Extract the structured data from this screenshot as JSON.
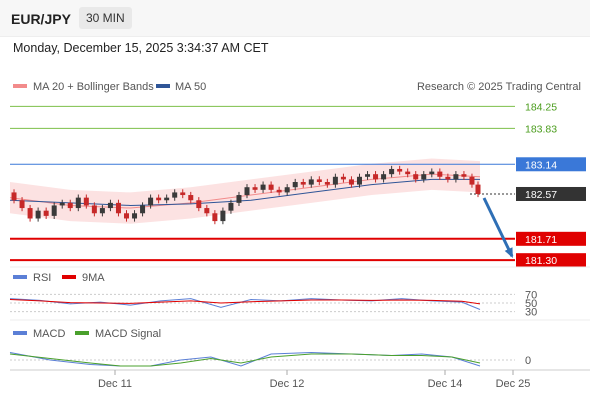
{
  "header": {
    "symbol": "EUR/JPY",
    "timeframe": "30 MIN",
    "datetime": "Monday, December 15, 2025 3:34:37 AM CET"
  },
  "legend": {
    "ma20_bb": "MA 20 + Bollinger Bands",
    "ma50": "MA 50",
    "credit": "Research © 2025 Trading Central",
    "rsi": "RSI",
    "rsi_ma": "9MA",
    "macd": "MACD",
    "macd_signal": "MACD Signal"
  },
  "colors": {
    "ma20_bb": "#f28b8b",
    "ma50": "#2f5597",
    "resistance": "#7dbf4a",
    "pivot": "#3a78d8",
    "support": "#e00000",
    "current": "#333333",
    "arrow": "#2f6fb5",
    "rsi": "#5b7fd6",
    "rsi_ma": "#e00000",
    "macd": "#5b7fd6",
    "macd_signal": "#4aa02c",
    "candle_up": "#3a3a3a",
    "candle_down": "#c62828"
  },
  "chart_data": [
    {
      "type": "candlestick",
      "title": "",
      "ylim": [
        181.15,
        184.45
      ],
      "x_ticks": [
        "Dec 11",
        "Dec 12",
        "Dec 14",
        "Dec 25"
      ],
      "levels": [
        {
          "name": "resistance-2",
          "value": "184.25",
          "kind": "resistance"
        },
        {
          "name": "resistance-1",
          "value": "183.83",
          "kind": "resistance"
        },
        {
          "name": "pivot",
          "value": "183.14",
          "kind": "pivot"
        },
        {
          "name": "current",
          "value": "182.57",
          "kind": "current"
        },
        {
          "name": "support-1",
          "value": "181.71",
          "kind": "support"
        },
        {
          "name": "support-2",
          "value": "181.30",
          "kind": "support"
        }
      ],
      "forecast": {
        "from": 182.57,
        "to": 181.3
      },
      "close_path": [
        [
          0,
          182.6
        ],
        [
          8,
          182.45
        ],
        [
          16,
          182.3
        ],
        [
          24,
          182.1
        ],
        [
          32,
          182.25
        ],
        [
          40,
          182.15
        ],
        [
          48,
          182.35
        ],
        [
          56,
          182.4
        ],
        [
          64,
          182.3
        ],
        [
          72,
          182.5
        ],
        [
          80,
          182.35
        ],
        [
          88,
          182.2
        ],
        [
          96,
          182.3
        ],
        [
          104,
          182.4
        ],
        [
          112,
          182.2
        ],
        [
          120,
          182.1
        ],
        [
          128,
          182.2
        ],
        [
          136,
          182.35
        ],
        [
          144,
          182.5
        ],
        [
          152,
          182.45
        ],
        [
          160,
          182.5
        ],
        [
          168,
          182.6
        ],
        [
          176,
          182.55
        ],
        [
          184,
          182.45
        ],
        [
          192,
          182.3
        ],
        [
          200,
          182.2
        ],
        [
          208,
          182.05
        ],
        [
          216,
          182.25
        ],
        [
          224,
          182.4
        ],
        [
          232,
          182.55
        ],
        [
          240,
          182.7
        ],
        [
          248,
          182.65
        ],
        [
          256,
          182.75
        ],
        [
          264,
          182.65
        ],
        [
          272,
          182.6
        ],
        [
          280,
          182.7
        ],
        [
          288,
          182.8
        ],
        [
          296,
          182.75
        ],
        [
          304,
          182.85
        ],
        [
          312,
          182.8
        ],
        [
          320,
          182.75
        ],
        [
          328,
          182.9
        ],
        [
          336,
          182.85
        ],
        [
          344,
          182.75
        ],
        [
          352,
          182.9
        ],
        [
          360,
          182.95
        ],
        [
          368,
          182.85
        ],
        [
          376,
          182.95
        ],
        [
          384,
          183.05
        ],
        [
          392,
          183.0
        ],
        [
          400,
          182.95
        ],
        [
          408,
          182.85
        ],
        [
          416,
          182.95
        ],
        [
          424,
          183.0
        ],
        [
          432,
          182.9
        ],
        [
          440,
          182.85
        ],
        [
          448,
          182.95
        ],
        [
          456,
          182.9
        ],
        [
          464,
          182.75
        ],
        [
          468,
          182.57
        ]
      ],
      "ma20_path": [
        [
          0,
          182.5
        ],
        [
          60,
          182.35
        ],
        [
          120,
          182.3
        ],
        [
          180,
          182.4
        ],
        [
          240,
          182.55
        ],
        [
          300,
          182.7
        ],
        [
          360,
          182.85
        ],
        [
          420,
          182.95
        ],
        [
          468,
          182.9
        ]
      ],
      "ma50_path": [
        [
          0,
          182.45
        ],
        [
          60,
          182.4
        ],
        [
          120,
          182.35
        ],
        [
          180,
          182.38
        ],
        [
          240,
          182.45
        ],
        [
          300,
          182.6
        ],
        [
          360,
          182.75
        ],
        [
          420,
          182.85
        ],
        [
          468,
          182.85
        ]
      ],
      "bb_width": 0.3
    },
    {
      "type": "line",
      "title": "",
      "ylim": [
        20,
        80
      ],
      "y_ticks": [
        "70",
        "50",
        "30"
      ],
      "series": [
        {
          "name": "RSI",
          "values": [
            [
              0,
              60
            ],
            [
              30,
              56
            ],
            [
              60,
              48
            ],
            [
              90,
              52
            ],
            [
              120,
              45
            ],
            [
              150,
              55
            ],
            [
              180,
              60
            ],
            [
              210,
              40
            ],
            [
              240,
              58
            ],
            [
              270,
              55
            ],
            [
              300,
              60
            ],
            [
              330,
              57
            ],
            [
              360,
              55
            ],
            [
              390,
              60
            ],
            [
              420,
              55
            ],
            [
              450,
              52
            ],
            [
              468,
              35
            ]
          ]
        },
        {
          "name": "9MA",
          "values": [
            [
              0,
              58
            ],
            [
              30,
              55
            ],
            [
              60,
              51
            ],
            [
              90,
              50
            ],
            [
              120,
              49
            ],
            [
              150,
              52
            ],
            [
              180,
              55
            ],
            [
              210,
              50
            ],
            [
              240,
              53
            ],
            [
              270,
              55
            ],
            [
              300,
              57
            ],
            [
              330,
              57
            ],
            [
              360,
              56
            ],
            [
              390,
              57
            ],
            [
              420,
              56
            ],
            [
              450,
              54
            ],
            [
              468,
              48
            ]
          ]
        }
      ]
    },
    {
      "type": "line",
      "title": "",
      "ylim": [
        -0.12,
        0.12
      ],
      "y_ticks": [
        "0"
      ],
      "series": [
        {
          "name": "MACD",
          "values": [
            [
              0,
              0.05
            ],
            [
              40,
              0.0
            ],
            [
              80,
              -0.03
            ],
            [
              110,
              -0.05
            ],
            [
              140,
              -0.08
            ],
            [
              170,
              0.0
            ],
            [
              200,
              0.02
            ],
            [
              230,
              -0.04
            ],
            [
              260,
              0.04
            ],
            [
              300,
              0.05
            ],
            [
              340,
              0.04
            ],
            [
              380,
              0.03
            ],
            [
              410,
              0.04
            ],
            [
              440,
              0.02
            ],
            [
              468,
              -0.05
            ]
          ]
        },
        {
          "name": "MACD Signal",
          "values": [
            [
              0,
              0.04
            ],
            [
              40,
              0.01
            ],
            [
              80,
              -0.02
            ],
            [
              110,
              -0.04
            ],
            [
              140,
              -0.06
            ],
            [
              170,
              -0.02
            ],
            [
              200,
              0.01
            ],
            [
              230,
              -0.02
            ],
            [
              260,
              0.02
            ],
            [
              300,
              0.04
            ],
            [
              340,
              0.04
            ],
            [
              380,
              0.03
            ],
            [
              410,
              0.03
            ],
            [
              440,
              0.02
            ],
            [
              468,
              -0.02
            ]
          ]
        }
      ]
    }
  ]
}
